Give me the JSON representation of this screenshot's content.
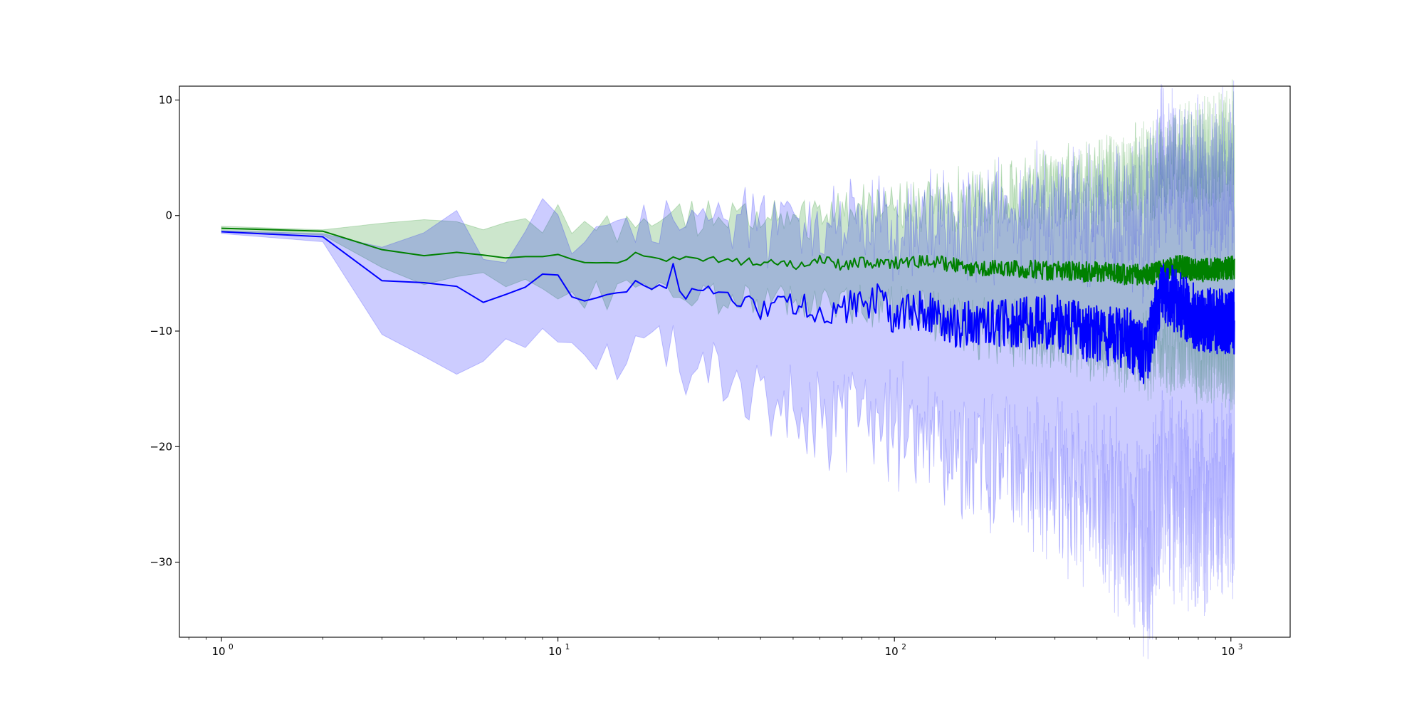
{
  "chart_data": {
    "type": "line",
    "title": "",
    "xlabel": "",
    "ylabel": "",
    "xscale": "log",
    "xlim": [
      0.75,
      1500
    ],
    "ylim": [
      -36.5,
      11.2
    ],
    "grid": false,
    "x_ticks": [
      {
        "value": 1,
        "base": "10",
        "exp": "0"
      },
      {
        "value": 10,
        "base": "10",
        "exp": "1"
      },
      {
        "value": 100,
        "base": "10",
        "exp": "2"
      },
      {
        "value": 1000,
        "base": "10",
        "exp": "3"
      }
    ],
    "y_ticks": [
      {
        "value": 10,
        "label": "10"
      },
      {
        "value": 0,
        "label": "0"
      },
      {
        "value": -10,
        "label": "−10"
      },
      {
        "value": -20,
        "label": "−20"
      },
      {
        "value": -30,
        "label": "−30"
      }
    ],
    "x_range": [
      1,
      1024
    ],
    "colors": {
      "series_green": "#008000",
      "series_blue": "#0000ff",
      "band_green": "#008000",
      "band_blue": "#0000ff"
    },
    "series": [
      {
        "color": "green",
        "anchors": [
          [
            1,
            -1.1
          ],
          [
            2,
            -1.4
          ],
          [
            3,
            -2.9
          ],
          [
            4,
            -3.4
          ],
          [
            5,
            -3.3
          ],
          [
            6,
            -3.4
          ],
          [
            7,
            -3.8
          ],
          [
            8,
            -3.7
          ],
          [
            9,
            -3.6
          ],
          [
            10,
            -3.4
          ],
          [
            12,
            -4.0
          ],
          [
            15,
            -4.2
          ],
          [
            17,
            -3.3
          ],
          [
            20,
            -3.9
          ],
          [
            25,
            -3.7
          ],
          [
            30,
            -3.9
          ],
          [
            40,
            -4.0
          ],
          [
            50,
            -4.3
          ],
          [
            60,
            -3.8
          ],
          [
            70,
            -4.3
          ],
          [
            80,
            -4.1
          ],
          [
            100,
            -4.1
          ],
          [
            130,
            -4.0
          ],
          [
            170,
            -4.6
          ],
          [
            200,
            -4.4
          ],
          [
            300,
            -4.8
          ],
          [
            400,
            -4.9
          ],
          [
            500,
            -5.2
          ],
          [
            600,
            -5.0
          ],
          [
            700,
            -4.4
          ],
          [
            800,
            -4.8
          ],
          [
            1024,
            -4.5
          ]
        ],
        "noise": [
          [
            1,
            0
          ],
          [
            8,
            0.15
          ],
          [
            20,
            0.25
          ],
          [
            50,
            0.4
          ],
          [
            100,
            0.55
          ],
          [
            200,
            0.75
          ],
          [
            500,
            0.95
          ],
          [
            1024,
            1.05
          ]
        ],
        "upper_offset": [
          [
            1,
            0.15
          ],
          [
            2,
            0.2
          ],
          [
            3,
            1.8
          ],
          [
            4,
            3.0
          ],
          [
            6,
            2.2
          ],
          [
            8,
            2.4
          ],
          [
            10,
            3.2
          ],
          [
            15,
            2.9
          ],
          [
            20,
            3.3
          ],
          [
            30,
            3.5
          ],
          [
            50,
            3.9
          ],
          [
            100,
            4.6
          ],
          [
            200,
            6.3
          ],
          [
            400,
            7.8
          ],
          [
            700,
            9.6
          ],
          [
            1024,
            10.7
          ]
        ],
        "lower_offset": [
          [
            1,
            0.2
          ],
          [
            2,
            0.5
          ],
          [
            3,
            1.7
          ],
          [
            4,
            3.0
          ],
          [
            6,
            2.4
          ],
          [
            10,
            2.7
          ],
          [
            20,
            3.0
          ],
          [
            50,
            3.4
          ],
          [
            100,
            4.1
          ],
          [
            200,
            5.6
          ],
          [
            400,
            6.2
          ],
          [
            700,
            7.5
          ],
          [
            1024,
            8.2
          ]
        ]
      },
      {
        "color": "blue",
        "anchors": [
          [
            1,
            -1.4
          ],
          [
            2,
            -1.9
          ],
          [
            3,
            -5.8
          ],
          [
            4,
            -5.8
          ],
          [
            5,
            -5.9
          ],
          [
            6,
            -7.4
          ],
          [
            7,
            -7.1
          ],
          [
            8,
            -6.1
          ],
          [
            9,
            -5.4
          ],
          [
            10,
            -5.1
          ],
          [
            11,
            -6.7
          ],
          [
            12,
            -7.6
          ],
          [
            14,
            -7.3
          ],
          [
            16,
            -7.0
          ],
          [
            17,
            -5.8
          ],
          [
            19,
            -6.5
          ],
          [
            21,
            -5.9
          ],
          [
            22,
            -4.6
          ],
          [
            23,
            -6.6
          ],
          [
            25,
            -6.5
          ],
          [
            30,
            -6.9
          ],
          [
            35,
            -7.4
          ],
          [
            40,
            -8.2
          ],
          [
            50,
            -7.6
          ],
          [
            60,
            -8.4
          ],
          [
            70,
            -8.0
          ],
          [
            80,
            -7.8
          ],
          [
            90,
            -7.5
          ],
          [
            100,
            -8.5
          ],
          [
            120,
            -8.3
          ],
          [
            150,
            -9.4
          ],
          [
            200,
            -9.3
          ],
          [
            300,
            -9.2
          ],
          [
            400,
            -10.4
          ],
          [
            500,
            -10.7
          ],
          [
            560,
            -12.2
          ],
          [
            620,
            -6.3
          ],
          [
            700,
            -7.6
          ],
          [
            800,
            -8.9
          ],
          [
            900,
            -9.3
          ],
          [
            1024,
            -9.1
          ]
        ],
        "noise": [
          [
            1,
            0
          ],
          [
            10,
            0.4
          ],
          [
            20,
            0.6
          ],
          [
            40,
            1.0
          ],
          [
            80,
            1.6
          ],
          [
            150,
            2.0
          ],
          [
            300,
            2.4
          ],
          [
            600,
            2.8
          ],
          [
            1024,
            3.0
          ]
        ],
        "upper_offset": [
          [
            1,
            0.1
          ],
          [
            2,
            0.3
          ],
          [
            3,
            4.3
          ],
          [
            4,
            5.0
          ],
          [
            5,
            5.2
          ],
          [
            6,
            4.8
          ],
          [
            8,
            4.9
          ],
          [
            10,
            4.3
          ],
          [
            15,
            4.8
          ],
          [
            20,
            5.4
          ],
          [
            30,
            6.2
          ],
          [
            40,
            7.2
          ],
          [
            60,
            7.1
          ],
          [
            100,
            7.2
          ],
          [
            150,
            8.3
          ],
          [
            200,
            9.3
          ],
          [
            300,
            9.8
          ],
          [
            500,
            10.5
          ],
          [
            700,
            11.6
          ],
          [
            1024,
            12.5
          ]
        ],
        "lower_offset": [
          [
            1,
            0.15
          ],
          [
            2,
            0.5
          ],
          [
            3,
            4.3
          ],
          [
            5,
            5.3
          ],
          [
            6,
            4.6
          ],
          [
            8,
            4.7
          ],
          [
            10,
            4.1
          ],
          [
            15,
            5.6
          ],
          [
            20,
            6.0
          ],
          [
            30,
            6.6
          ],
          [
            40,
            8.1
          ],
          [
            60,
            8.9
          ],
          [
            100,
            9.7
          ],
          [
            150,
            10.8
          ],
          [
            200,
            11.8
          ],
          [
            300,
            13.3
          ],
          [
            500,
            16.0
          ],
          [
            600,
            17.5
          ],
          [
            800,
            17.0
          ],
          [
            1024,
            15.0
          ]
        ]
      }
    ]
  }
}
